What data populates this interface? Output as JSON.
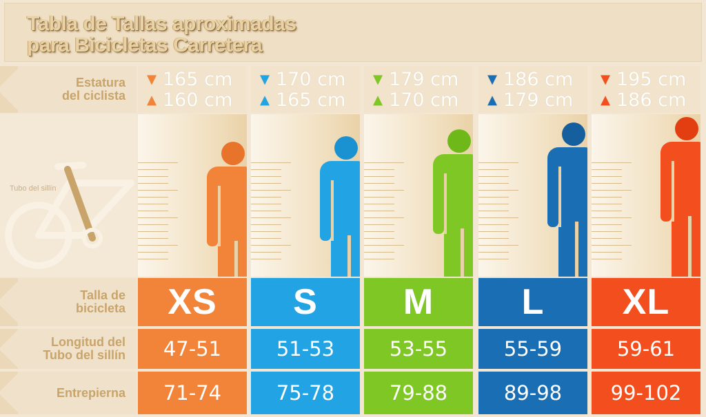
{
  "title": {
    "line1": "Tabla de Tallas aproximadas",
    "line2": "para Bicicletas Carretera"
  },
  "labels": {
    "height": [
      "Estatura",
      "del ciclista"
    ],
    "size": [
      "Talla de",
      "bicicleta"
    ],
    "tube": [
      "Longitud del",
      "Tubo del sillín"
    ],
    "inseam": "Entrepierna",
    "bike_tube": "Tubo del sillín"
  },
  "colors": {
    "page_bg": "#f3e7d3",
    "label_text": "#c9a46a",
    "xs": "#f2843a",
    "s": "#22a4e4",
    "m": "#7fc724",
    "l": "#1a6fb4",
    "xl": "#f24e1e"
  },
  "sizes": [
    {
      "key": "xs",
      "size": "XS",
      "height_max": "165 cm",
      "height_min": "160 cm",
      "seat_tube": "47-51",
      "inseam": "71-74",
      "color": "#f2843a",
      "head": "#e8732a"
    },
    {
      "key": "s",
      "size": "S",
      "height_max": "170 cm",
      "height_min": "165 cm",
      "seat_tube": "51-53",
      "inseam": "75-78",
      "color": "#22a4e4",
      "head": "#1a92d2"
    },
    {
      "key": "m",
      "size": "M",
      "height_max": "179 cm",
      "height_min": "170 cm",
      "seat_tube": "53-55",
      "inseam": "79-88",
      "color": "#7fc724",
      "head": "#6eb81a"
    },
    {
      "key": "l",
      "size": "L",
      "height_max": "186 cm",
      "height_min": "179 cm",
      "seat_tube": "55-59",
      "inseam": "89-98",
      "color": "#1a6fb4",
      "head": "#155f9e"
    },
    {
      "key": "xl",
      "size": "XL",
      "height_max": "195 cm",
      "height_min": "186 cm",
      "seat_tube": "59-61",
      "inseam": "99-102",
      "color": "#f24e1e",
      "head": "#e23e12"
    }
  ],
  "icons": {
    "down": "triangle-down-icon",
    "up": "triangle-up-icon",
    "figure": "person-silhouette-icon",
    "bike": "bicycle-icon"
  }
}
